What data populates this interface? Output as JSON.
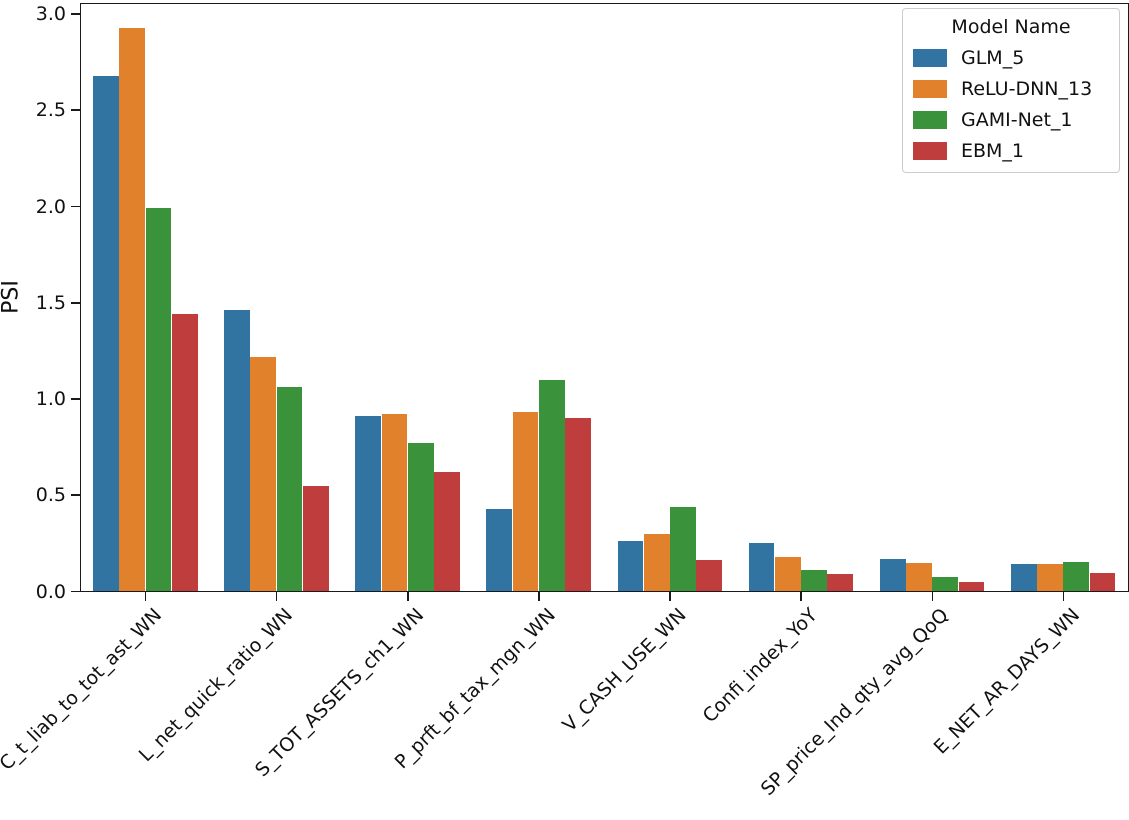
{
  "chart_data": {
    "type": "bar",
    "title": "",
    "xlabel": "",
    "ylabel": "PSI",
    "categories": [
      "C_t_liab_to_tot_ast_WN",
      "L_net_quick_ratio_WN",
      "S_TOT_ASSETS_ch1_WN",
      "P_prft_bf_tax_mgn_WN",
      "V_CASH_USE_WN",
      "Confi_index_YoY",
      "SP_price_Ind_qty_avg_QoQ",
      "E_NET_AR_DAYS_WN"
    ],
    "series": [
      {
        "name": "GLM_5",
        "color": "#3274a1",
        "values": [
          2.68,
          1.46,
          0.91,
          0.43,
          0.26,
          0.25,
          0.17,
          0.145
        ]
      },
      {
        "name": "ReLU-DNN_13",
        "color": "#e1812c",
        "values": [
          2.93,
          1.22,
          0.92,
          0.93,
          0.3,
          0.18,
          0.15,
          0.145
        ]
      },
      {
        "name": "GAMI-Net_1",
        "color": "#3a923a",
        "values": [
          1.99,
          1.06,
          0.77,
          1.1,
          0.44,
          0.11,
          0.075,
          0.155
        ]
      },
      {
        "name": "EBM_1",
        "color": "#c03d3e",
        "values": [
          1.44,
          0.55,
          0.62,
          0.9,
          0.165,
          0.09,
          0.05,
          0.095
        ]
      }
    ],
    "legend": {
      "title": "Model Name",
      "position": "upper right"
    },
    "ylim": [
      0,
      3.06
    ],
    "ytick_labels": [
      "0.0",
      "0.5",
      "1.0",
      "1.5",
      "2.0",
      "2.5",
      "3.0"
    ],
    "xtick_rotation": 45,
    "grid": false,
    "bar_group_fraction": 0.8
  }
}
